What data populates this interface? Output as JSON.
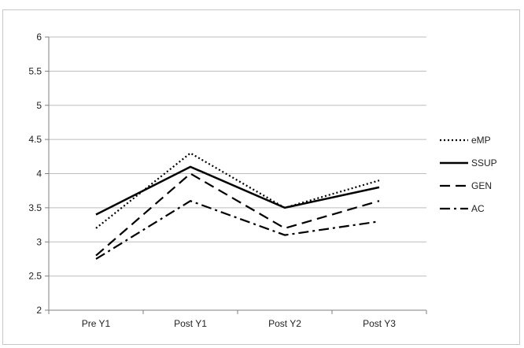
{
  "chart_data": {
    "type": "line",
    "title": "",
    "xlabel": "",
    "ylabel": "",
    "categories": [
      "Pre Y1",
      "Post Y1",
      "Post Y2",
      "Post Y3"
    ],
    "ylim": [
      2,
      6
    ],
    "yticks": [
      2,
      2.5,
      3,
      3.5,
      4,
      4.5,
      5,
      5.5,
      6
    ],
    "ytick_labels": [
      "2",
      "2.5",
      "3",
      "3.5",
      "4",
      "4.5",
      "5",
      "5.5",
      "6"
    ],
    "grid": true,
    "legend_position": "right",
    "series": [
      {
        "name": "eMP",
        "values": [
          3.2,
          4.3,
          3.5,
          3.9
        ],
        "line_style": "dotted",
        "color": "#000000"
      },
      {
        "name": "SSUP",
        "values": [
          3.4,
          4.1,
          3.5,
          3.8
        ],
        "line_style": "solid",
        "color": "#000000"
      },
      {
        "name": "GEN",
        "values": [
          2.8,
          4.0,
          3.2,
          3.6
        ],
        "line_style": "dashed",
        "color": "#000000"
      },
      {
        "name": "AC",
        "values": [
          2.75,
          3.6,
          3.1,
          3.3
        ],
        "line_style": "dash-dot",
        "color": "#000000"
      }
    ]
  }
}
